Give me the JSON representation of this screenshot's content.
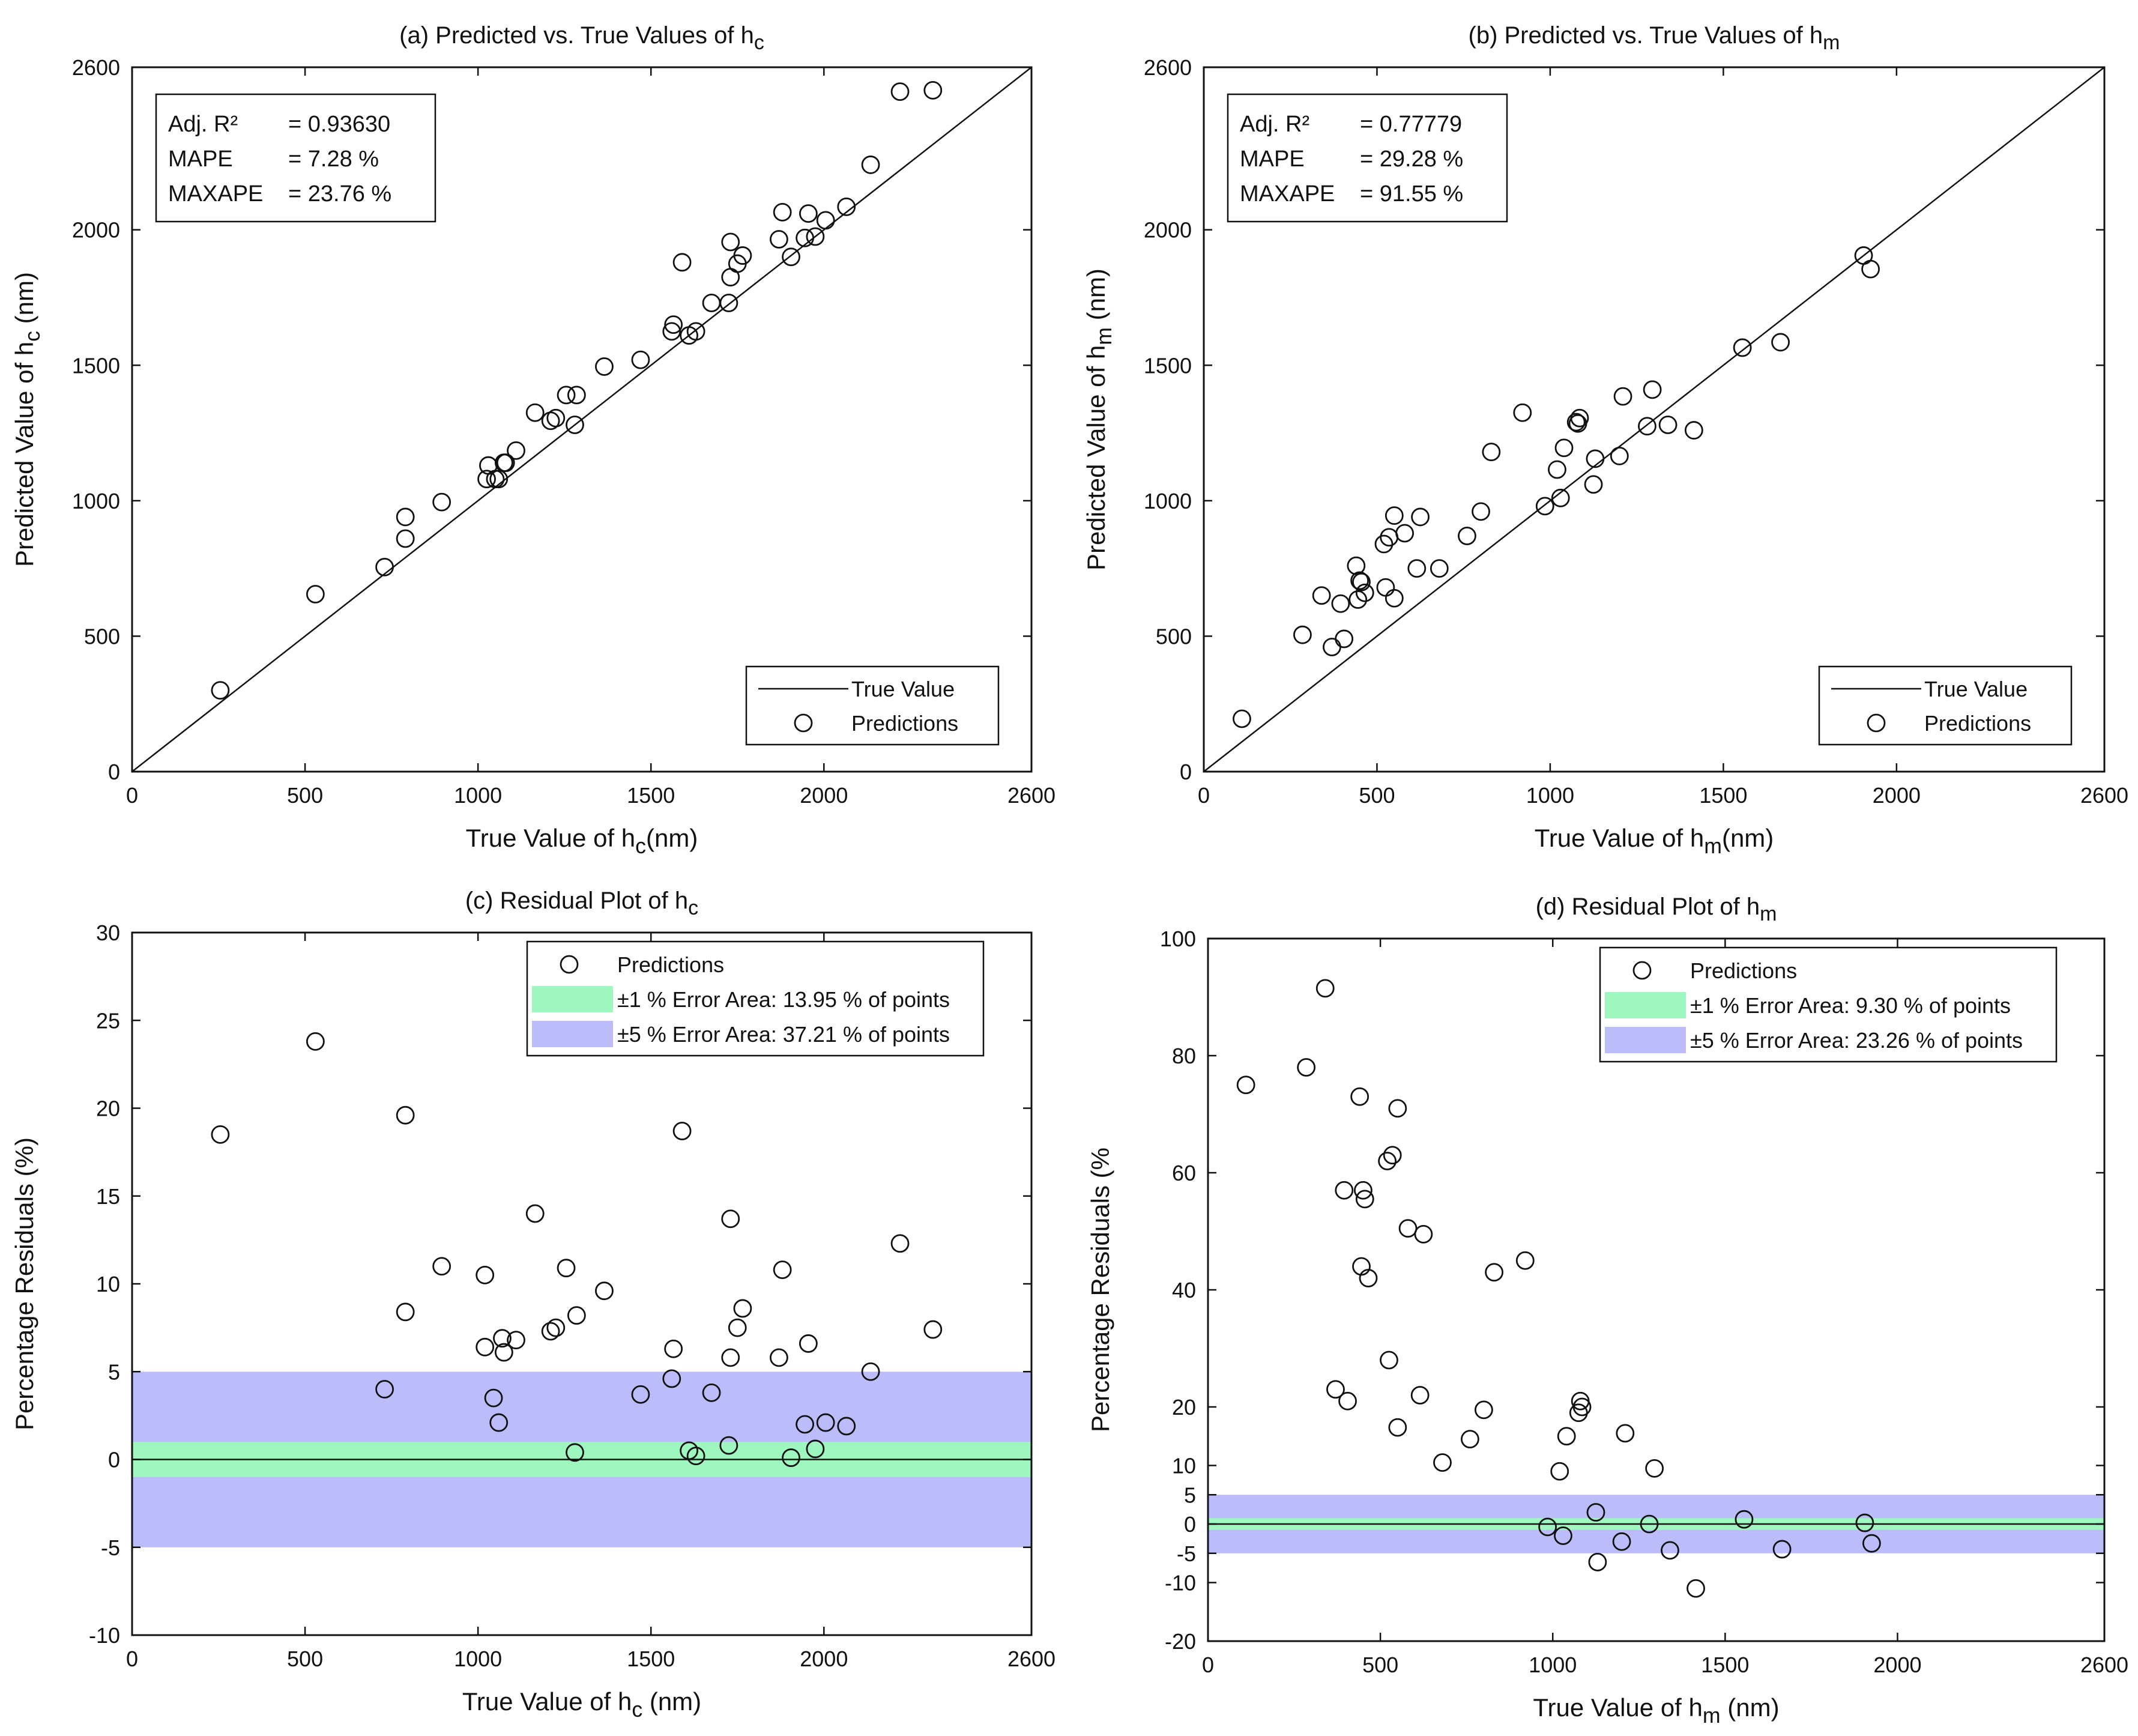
{
  "chart_data": [
    {
      "type": "scatter",
      "title_prefix": "(a) Predicted vs. True Values of h",
      "title_sub": "c",
      "xlabel_prefix": "True Value of h",
      "xlabel_sub": "c",
      "xlabel_suffix": "(nm)",
      "ylabel_prefix": "Predicted Value of h",
      "ylabel_sub": "c",
      "ylabel_suffix": " (nm)",
      "xlim": [
        0,
        2600
      ],
      "ylim": [
        0,
        2600
      ],
      "xticks": [
        0,
        500,
        1000,
        1500,
        2000,
        2600
      ],
      "yticks": [
        0,
        500,
        1000,
        1500,
        2000,
        2600
      ],
      "diagonal": true,
      "stats": [
        {
          "label": "Adj. R²",
          "value": "=  0.93630"
        },
        {
          "label": "MAPE",
          "value": "=  7.28 %"
        },
        {
          "label": "MAXAPE",
          "value": "=  23.76 %"
        }
      ],
      "legend": [
        {
          "label": "True Value",
          "kind": "line"
        },
        {
          "label": "Predictions",
          "kind": "marker"
        }
      ],
      "points": [
        [
          255,
          300
        ],
        [
          530,
          655
        ],
        [
          730,
          755
        ],
        [
          790,
          940
        ],
        [
          790,
          860
        ],
        [
          895,
          995
        ],
        [
          1025,
          1080
        ],
        [
          1030,
          1130
        ],
        [
          1050,
          1080
        ],
        [
          1060,
          1080
        ],
        [
          1075,
          1140
        ],
        [
          1080,
          1140
        ],
        [
          1110,
          1185
        ],
        [
          1165,
          1325
        ],
        [
          1210,
          1295
        ],
        [
          1225,
          1305
        ],
        [
          1255,
          1390
        ],
        [
          1280,
          1280
        ],
        [
          1285,
          1390
        ],
        [
          1365,
          1495
        ],
        [
          1470,
          1520
        ],
        [
          1560,
          1625
        ],
        [
          1565,
          1650
        ],
        [
          1590,
          1880
        ],
        [
          1610,
          1610
        ],
        [
          1630,
          1625
        ],
        [
          1675,
          1730
        ],
        [
          1725,
          1730
        ],
        [
          1730,
          1825
        ],
        [
          1730,
          1955
        ],
        [
          1750,
          1875
        ],
        [
          1765,
          1905
        ],
        [
          1870,
          1965
        ],
        [
          1880,
          2065
        ],
        [
          1905,
          1900
        ],
        [
          1945,
          1970
        ],
        [
          1955,
          2060
        ],
        [
          1975,
          1975
        ],
        [
          2005,
          2035
        ],
        [
          2065,
          2085
        ],
        [
          2135,
          2240
        ],
        [
          2220,
          2510
        ],
        [
          2315,
          2515
        ]
      ]
    },
    {
      "type": "scatter",
      "title_prefix": "(b) Predicted vs. True Values of h",
      "title_sub": "m",
      "xlabel_prefix": "True Value of h",
      "xlabel_sub": "m",
      "xlabel_suffix": "(nm)",
      "ylabel_prefix": "Predicted Value of h",
      "ylabel_sub": "m",
      "ylabel_suffix": " (nm)",
      "xlim": [
        0,
        2600
      ],
      "ylim": [
        0,
        2600
      ],
      "xticks": [
        0,
        500,
        1000,
        1500,
        2000,
        2600
      ],
      "yticks": [
        0,
        500,
        1000,
        1500,
        2000,
        2600
      ],
      "diagonal": true,
      "stats": [
        {
          "label": "Adj. R²",
          "value": "=  0.77779"
        },
        {
          "label": "MAPE",
          "value": "=  29.28 %"
        },
        {
          "label": "MAXAPE",
          "value": "=  91.55 %"
        }
      ],
      "legend": [
        {
          "label": "True Value",
          "kind": "line"
        },
        {
          "label": "Predictions",
          "kind": "marker"
        }
      ],
      "points": [
        [
          110,
          195
        ],
        [
          285,
          505
        ],
        [
          340,
          650
        ],
        [
          370,
          460
        ],
        [
          395,
          620
        ],
        [
          405,
          490
        ],
        [
          440,
          760
        ],
        [
          445,
          635
        ],
        [
          450,
          705
        ],
        [
          455,
          700
        ],
        [
          465,
          660
        ],
        [
          520,
          840
        ],
        [
          525,
          680
        ],
        [
          535,
          865
        ],
        [
          550,
          945
        ],
        [
          550,
          640
        ],
        [
          580,
          880
        ],
        [
          615,
          750
        ],
        [
          625,
          940
        ],
        [
          680,
          750
        ],
        [
          760,
          870
        ],
        [
          800,
          960
        ],
        [
          830,
          1180
        ],
        [
          920,
          1325
        ],
        [
          985,
          980
        ],
        [
          1020,
          1115
        ],
        [
          1030,
          1010
        ],
        [
          1040,
          1195
        ],
        [
          1075,
          1290
        ],
        [
          1080,
          1285
        ],
        [
          1085,
          1305
        ],
        [
          1125,
          1060
        ],
        [
          1130,
          1155
        ],
        [
          1200,
          1165
        ],
        [
          1210,
          1385
        ],
        [
          1280,
          1275
        ],
        [
          1295,
          1410
        ],
        [
          1340,
          1280
        ],
        [
          1415,
          1260
        ],
        [
          1555,
          1565
        ],
        [
          1665,
          1585
        ],
        [
          1905,
          1905
        ],
        [
          1925,
          1855
        ]
      ]
    },
    {
      "type": "scatter",
      "title_prefix": "(c)  Residual Plot of  h",
      "title_sub": "c",
      "xlabel_prefix": "True Value of h",
      "xlabel_sub": "c",
      "xlabel_suffix": " (nm)",
      "ylabel": "Percentage Residuals (%)",
      "xlim": [
        0,
        2600
      ],
      "ylim": [
        -10,
        30
      ],
      "xticks": [
        0,
        500,
        1000,
        1500,
        2000,
        2600
      ],
      "yticks": [
        -10,
        -5,
        0,
        5,
        10,
        15,
        20,
        25,
        30
      ],
      "bands": [
        {
          "halfwidth": 5,
          "color": "#bcbcfa"
        },
        {
          "halfwidth": 1,
          "color": "#9ef7bf"
        }
      ],
      "legend": [
        {
          "label": "Predictions",
          "kind": "marker"
        },
        {
          "label": "±1 % Error Area: 13.95 % of points",
          "kind": "band",
          "color": "#9ef7bf"
        },
        {
          "label": "±5 % Error Area: 37.21 % of points",
          "kind": "band",
          "color": "#bcbcfa"
        }
      ],
      "points": [
        [
          255,
          18.5
        ],
        [
          530,
          23.8
        ],
        [
          730,
          4.0
        ],
        [
          790,
          19.6
        ],
        [
          790,
          8.4
        ],
        [
          895,
          11.0
        ],
        [
          1020,
          10.5
        ],
        [
          1020,
          6.4
        ],
        [
          1045,
          3.5
        ],
        [
          1060,
          2.1
        ],
        [
          1070,
          6.9
        ],
        [
          1075,
          6.1
        ],
        [
          1110,
          6.8
        ],
        [
          1165,
          14.0
        ],
        [
          1210,
          7.3
        ],
        [
          1225,
          7.5
        ],
        [
          1255,
          10.9
        ],
        [
          1280,
          0.4
        ],
        [
          1285,
          8.2
        ],
        [
          1365,
          9.6
        ],
        [
          1470,
          3.7
        ],
        [
          1560,
          4.6
        ],
        [
          1565,
          6.3
        ],
        [
          1590,
          18.7
        ],
        [
          1610,
          0.5
        ],
        [
          1630,
          0.2
        ],
        [
          1675,
          3.8
        ],
        [
          1725,
          0.8
        ],
        [
          1730,
          5.8
        ],
        [
          1730,
          13.7
        ],
        [
          1750,
          7.5
        ],
        [
          1765,
          8.6
        ],
        [
          1870,
          5.8
        ],
        [
          1880,
          10.8
        ],
        [
          1905,
          0.1
        ],
        [
          1945,
          2.0
        ],
        [
          1955,
          6.6
        ],
        [
          1975,
          0.6
        ],
        [
          2005,
          2.1
        ],
        [
          2065,
          1.9
        ],
        [
          2135,
          5.0
        ],
        [
          2220,
          12.3
        ],
        [
          2315,
          7.4
        ]
      ]
    },
    {
      "type": "scatter",
      "title_prefix": "(d)  Residual Plot of  h",
      "title_sub": "m",
      "xlabel_prefix": "True Value of h",
      "xlabel_sub": "m",
      "xlabel_suffix": " (nm)",
      "ylabel": "Percentage Residuals (%",
      "xlim": [
        0,
        2600
      ],
      "ylim": [
        -20,
        100
      ],
      "xticks": [
        0,
        500,
        1000,
        1500,
        2000,
        2600
      ],
      "yticks": [
        -20,
        -10,
        -5,
        0,
        5,
        10,
        20,
        40,
        60,
        80,
        100
      ],
      "bands": [
        {
          "halfwidth": 5,
          "color": "#bcbcfa"
        },
        {
          "halfwidth": 1,
          "color": "#9ef7bf"
        }
      ],
      "legend": [
        {
          "label": "Predictions",
          "kind": "marker"
        },
        {
          "label": "±1 % Error Area: 9.30 % of points",
          "kind": "band",
          "color": "#9ef7bf"
        },
        {
          "label": "±5 % Error Area: 23.26 % of points",
          "kind": "band",
          "color": "#bcbcfa"
        }
      ],
      "points": [
        [
          110,
          75
        ],
        [
          285,
          78
        ],
        [
          340,
          91.5
        ],
        [
          370,
          23
        ],
        [
          395,
          57
        ],
        [
          405,
          21
        ],
        [
          440,
          73
        ],
        [
          445,
          44
        ],
        [
          450,
          57
        ],
        [
          455,
          55.5
        ],
        [
          465,
          42
        ],
        [
          520,
          62
        ],
        [
          525,
          28
        ],
        [
          535,
          63
        ],
        [
          550,
          71
        ],
        [
          550,
          16.5
        ],
        [
          580,
          50.5
        ],
        [
          615,
          22
        ],
        [
          625,
          49.5
        ],
        [
          680,
          10.5
        ],
        [
          760,
          14.5
        ],
        [
          800,
          19.5
        ],
        [
          830,
          43
        ],
        [
          920,
          45
        ],
        [
          985,
          -0.5
        ],
        [
          1020,
          9
        ],
        [
          1030,
          -2
        ],
        [
          1040,
          15
        ],
        [
          1075,
          19
        ],
        [
          1080,
          21
        ],
        [
          1085,
          20
        ],
        [
          1125,
          2
        ],
        [
          1130,
          -6.5
        ],
        [
          1200,
          -3
        ],
        [
          1210,
          15.5
        ],
        [
          1280,
          0
        ],
        [
          1295,
          9.5
        ],
        [
          1340,
          -4.5
        ],
        [
          1415,
          -11
        ],
        [
          1555,
          0.8
        ],
        [
          1665,
          -4.3
        ],
        [
          1905,
          0.2
        ],
        [
          1925,
          -3.3
        ]
      ]
    }
  ]
}
